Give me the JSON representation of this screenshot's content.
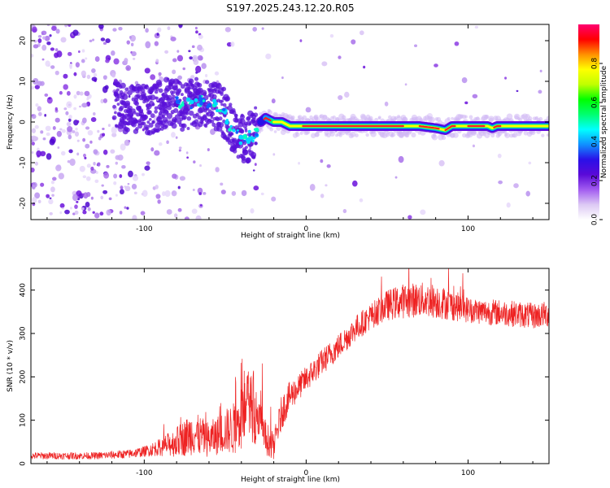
{
  "title": "S197.2025.243.12.20.R05",
  "chart_data": [
    {
      "type": "heatmap",
      "name": "spectrogram",
      "xlabel": "Height of straight line (km)",
      "ylabel": "Frequency (Hz)",
      "xlim": [
        -170,
        150
      ],
      "ylim": [
        -24,
        24
      ],
      "xticks": [
        -100,
        0,
        100
      ],
      "xtick_labels": [
        "-100",
        "0",
        "100"
      ],
      "yticks": [
        -20,
        -10,
        0,
        10,
        20
      ],
      "ytick_labels": [
        "-20",
        "-10",
        "0",
        "10",
        "20"
      ],
      "ridge": {
        "x": [
          -120,
          -105,
          -95,
          -85,
          -75,
          -65,
          -58,
          -52,
          -48,
          -44,
          -40,
          -36,
          -32,
          -28,
          -25,
          -20,
          -15,
          -10,
          0,
          20,
          40,
          60,
          70,
          80,
          86,
          90,
          100,
          112,
          115,
          118,
          130,
          150
        ],
        "freq": [
          4,
          3,
          3,
          5,
          4,
          5,
          5,
          3,
          0,
          -2,
          -4,
          -4,
          -3,
          0,
          1,
          0,
          0,
          -1,
          -1,
          -1,
          -1,
          -1,
          -1,
          -1.5,
          -2,
          -1,
          -1,
          -1,
          -1.5,
          -1,
          -1,
          -1
        ]
      }
    },
    {
      "type": "colorbar",
      "name": "colorbar",
      "label": "Normalized spectral amplitude",
      "range": [
        0,
        1
      ],
      "ticks": [
        0.0,
        0.2,
        0.4,
        0.6,
        0.8
      ],
      "tick_labels": [
        "0.0",
        "0.2",
        "0.4",
        "0.6",
        "0.8"
      ],
      "colors": [
        "#ffffff",
        "#dcc8f4",
        "#a25cf0",
        "#5a0ad8",
        "#2a10e8",
        "#1090ff",
        "#00ffff",
        "#00ff70",
        "#00ff00",
        "#c0ff00",
        "#ffff00",
        "#ff9000",
        "#ff0000",
        "#ff0070"
      ]
    },
    {
      "type": "line",
      "name": "snr",
      "xlabel": "Height of straight line (km)",
      "ylabel": "SNR (10 * v/v)",
      "xlim": [
        -170,
        150
      ],
      "ylim": [
        0,
        450
      ],
      "xticks": [
        -100,
        0,
        100
      ],
      "xtick_labels": [
        "-100",
        "0",
        "100"
      ],
      "yticks": [
        0,
        100,
        200,
        300,
        400
      ],
      "ytick_labels": [
        "0",
        "100",
        "200",
        "300",
        "400"
      ],
      "color": "#ee2222",
      "series": [
        {
          "name": "SNR",
          "x": [
            -170,
            -130,
            -110,
            -100,
            -90,
            -80,
            -70,
            -60,
            -50,
            -45,
            -40,
            -35,
            -30,
            -25,
            -20,
            -15,
            -10,
            -5,
            0,
            10,
            20,
            30,
            40,
            50,
            60,
            70,
            80,
            90,
            100,
            110,
            120,
            130,
            140,
            150
          ],
          "y": [
            18,
            18,
            22,
            28,
            38,
            50,
            70,
            55,
            75,
            80,
            100,
            140,
            100,
            60,
            40,
            120,
            155,
            175,
            195,
            235,
            270,
            310,
            340,
            365,
            375,
            378,
            375,
            365,
            355,
            350,
            348,
            345,
            340,
            345
          ],
          "noise": [
            8,
            8,
            10,
            12,
            20,
            35,
            50,
            40,
            50,
            60,
            70,
            80,
            70,
            40,
            30,
            40,
            35,
            30,
            30,
            30,
            30,
            30,
            30,
            35,
            40,
            40,
            40,
            35,
            30,
            30,
            30,
            30,
            30,
            30
          ]
        }
      ]
    }
  ]
}
